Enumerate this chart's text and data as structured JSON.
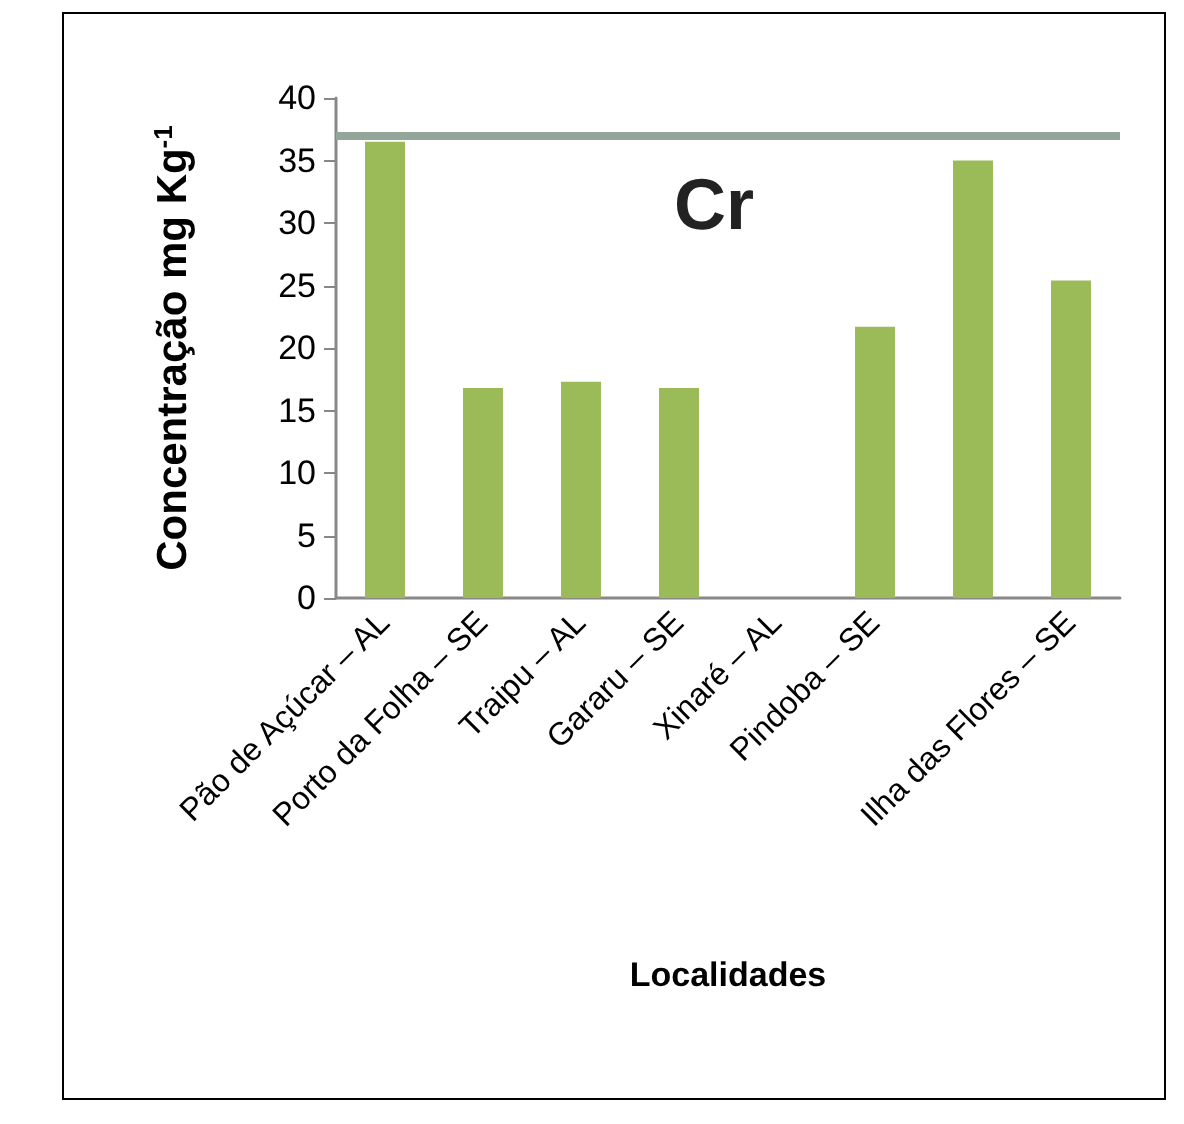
{
  "chart_data": {
    "type": "bar",
    "title": "Cr",
    "xlabel": "Localidades",
    "ylabel": "Concentração mg Kg$^{-1}$",
    "categories": [
      "Pão de Açúcar – AL",
      "Porto da Folha – SE",
      "Traipu – AL",
      "Gararu – SE",
      "Xinaré – AL",
      "Pindoba – SE",
      null,
      "Ilha das Flores – SE"
    ],
    "values": [
      36.5,
      16.8,
      17.3,
      16.8,
      null,
      21.7,
      35.0,
      25.4
    ],
    "color": "#9bbb59",
    "ylim": [
      0,
      40
    ],
    "yticks": [
      0,
      5,
      10,
      15,
      20,
      25,
      30,
      35,
      40
    ],
    "grid": false,
    "ref_lines": [
      {
        "axis": "y",
        "value": 37,
        "color": "#93a699"
      }
    ]
  }
}
